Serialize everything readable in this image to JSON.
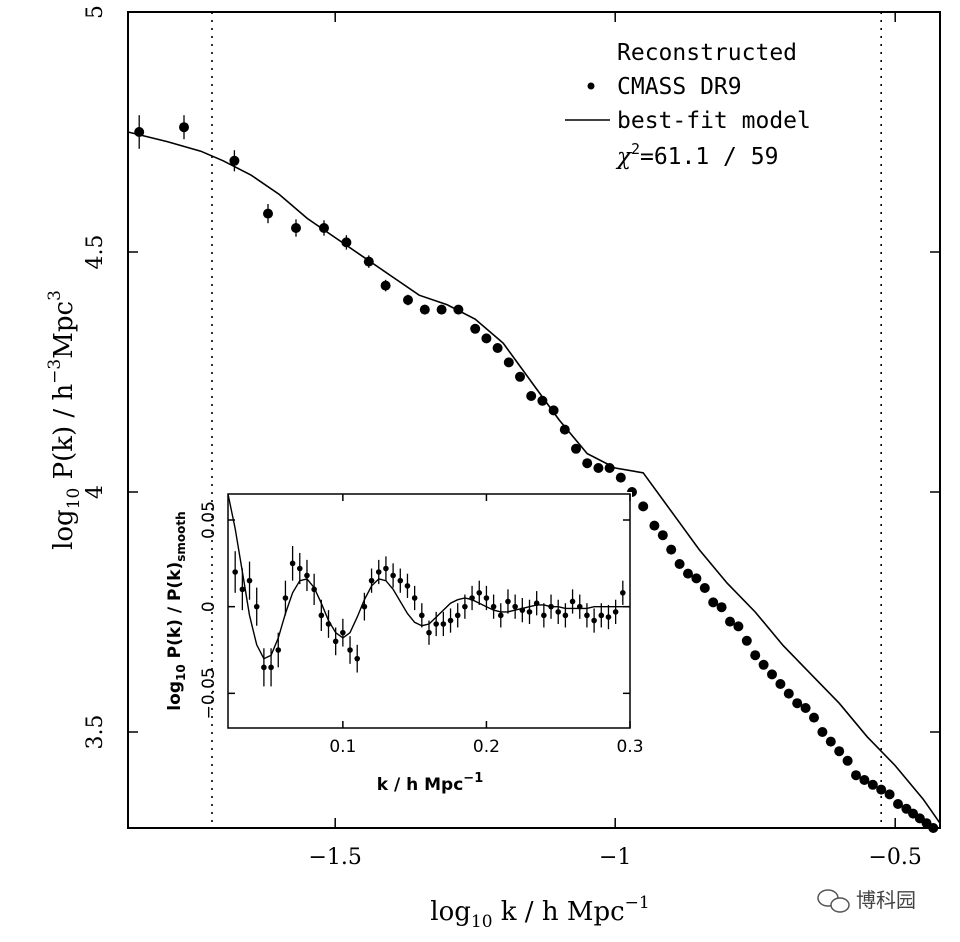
{
  "chart_data": [
    {
      "type": "scatter",
      "title": "",
      "xlabel_main": "log",
      "xlabel_sub": "10",
      "xlabel_rest": " k / h Mpc",
      "xlabel_sup": "−1",
      "ylabel_main": "log",
      "ylabel_sub": "10",
      "ylabel_rest": " P(k) / h",
      "ylabel_sup1": "−3",
      "ylabel_mid": "Mpc",
      "ylabel_sup2": "3",
      "xlim": [
        -1.87,
        -0.42
      ],
      "ylim": [
        3.3,
        5.0
      ],
      "xticks": [
        -1.5,
        -1,
        -0.5
      ],
      "xtick_labels": [
        "−1.5",
        "−1",
        "−0.5"
      ],
      "yticks": [
        3.5,
        4,
        4.5,
        5
      ],
      "ytick_labels": [
        "3.5",
        "4",
        "4.5",
        "5"
      ],
      "vlines_dotted": [
        -1.72,
        -0.525
      ],
      "legend": {
        "title": "Reconstructed",
        "points_label": "CMASS DR9",
        "line_label": "best-fit model",
        "chi_symbol": "χ",
        "chi_sup": "2",
        "chi_value": "=61.1 / 59"
      },
      "series": [
        {
          "name": "CMASS DR9",
          "x": [
            -1.85,
            -1.77,
            -1.68,
            -1.62,
            -1.57,
            -1.52,
            -1.48,
            -1.44,
            -1.41,
            -1.37,
            -1.34,
            -1.31,
            -1.28,
            -1.25,
            -1.23,
            -1.21,
            -1.19,
            -1.17,
            -1.15,
            -1.13,
            -1.11,
            -1.09,
            -1.07,
            -1.05,
            -1.03,
            -1.01,
            -0.99,
            -0.97,
            -0.95,
            -0.93,
            -0.915,
            -0.9,
            -0.885,
            -0.87,
            -0.855,
            -0.84,
            -0.825,
            -0.81,
            -0.795,
            -0.78,
            -0.765,
            -0.75,
            -0.735,
            -0.72,
            -0.705,
            -0.69,
            -0.675,
            -0.66,
            -0.645,
            -0.63,
            -0.615,
            -0.6,
            -0.585,
            -0.57,
            -0.555,
            -0.54,
            -0.525,
            -0.51,
            -0.495,
            -0.48,
            -0.468,
            -0.456,
            -0.444,
            -0.432
          ],
          "y": [
            4.75,
            4.76,
            4.69,
            4.58,
            4.55,
            4.55,
            4.52,
            4.48,
            4.43,
            4.4,
            4.38,
            4.38,
            4.38,
            4.34,
            4.32,
            4.3,
            4.27,
            4.24,
            4.2,
            4.19,
            4.17,
            4.13,
            4.09,
            4.06,
            4.05,
            4.05,
            4.03,
            4.0,
            3.97,
            3.93,
            3.91,
            3.88,
            3.85,
            3.83,
            3.82,
            3.8,
            3.77,
            3.76,
            3.73,
            3.72,
            3.69,
            3.66,
            3.64,
            3.62,
            3.6,
            3.58,
            3.56,
            3.55,
            3.53,
            3.5,
            3.48,
            3.46,
            3.44,
            3.41,
            3.4,
            3.39,
            3.38,
            3.37,
            3.35,
            3.34,
            3.33,
            3.32,
            3.31,
            3.3
          ],
          "yerr": [
            0.035,
            0.025,
            0.022,
            0.02,
            0.018,
            0.016,
            0.015,
            0.013,
            0.012,
            0.011,
            0.01,
            0.009,
            0.008,
            0.008,
            0.007,
            0.007,
            0.006,
            0.006,
            0.006,
            0.005,
            0.005,
            0.005,
            0.005,
            0.005,
            0.005,
            0.005,
            0.005,
            0.004,
            0.004,
            0.004,
            0.004,
            0.004,
            0.004,
            0.004,
            0.004,
            0.004,
            0.004,
            0.004,
            0.004,
            0.004,
            0.004,
            0.004,
            0.004,
            0.004,
            0.004,
            0.004,
            0.004,
            0.004,
            0.004,
            0.004,
            0.004,
            0.004,
            0.004,
            0.004,
            0.004,
            0.004,
            0.004,
            0.004,
            0.004,
            0.004,
            0.004,
            0.004,
            0.004,
            0.004
          ]
        },
        {
          "name": "best-fit model",
          "x": [
            -1.87,
            -1.8,
            -1.74,
            -1.7,
            -1.65,
            -1.6,
            -1.55,
            -1.5,
            -1.45,
            -1.4,
            -1.35,
            -1.3,
            -1.25,
            -1.2,
            -1.15,
            -1.1,
            -1.05,
            -1.0,
            -0.95,
            -0.9,
            -0.85,
            -0.8,
            -0.75,
            -0.7,
            -0.65,
            -0.6,
            -0.55,
            -0.5,
            -0.45,
            -0.42
          ],
          "y": [
            4.75,
            4.73,
            4.71,
            4.69,
            4.66,
            4.62,
            4.57,
            4.53,
            4.49,
            4.45,
            4.41,
            4.39,
            4.36,
            4.31,
            4.23,
            4.15,
            4.08,
            4.05,
            4.04,
            3.96,
            3.88,
            3.81,
            3.75,
            3.68,
            3.62,
            3.56,
            3.49,
            3.43,
            3.36,
            3.31
          ]
        }
      ]
    },
    {
      "type": "scatter",
      "title": "",
      "xlabel_main": "k / h Mpc",
      "xlabel_sup": "−1",
      "ylabel_main": "log",
      "ylabel_sub": "10",
      "ylabel_rest": " P(k) / P(k)",
      "ylabel_sub2": "smooth",
      "xlim": [
        0.02,
        0.3
      ],
      "ylim": [
        -0.07,
        0.065
      ],
      "xticks": [
        0.1,
        0.2,
        0.3
      ],
      "xtick_labels": [
        "0.1",
        "0.2",
        "0.3"
      ],
      "yticks": [
        -0.05,
        0,
        0.05
      ],
      "ytick_labels": [
        "−0.05",
        "0",
        "0.05"
      ],
      "series": [
        {
          "name": "data",
          "x": [
            0.025,
            0.03,
            0.035,
            0.04,
            0.045,
            0.05,
            0.055,
            0.06,
            0.065,
            0.07,
            0.075,
            0.08,
            0.085,
            0.09,
            0.095,
            0.1,
            0.105,
            0.11,
            0.115,
            0.12,
            0.125,
            0.13,
            0.135,
            0.14,
            0.145,
            0.15,
            0.155,
            0.16,
            0.165,
            0.17,
            0.175,
            0.18,
            0.185,
            0.19,
            0.195,
            0.2,
            0.205,
            0.21,
            0.215,
            0.22,
            0.225,
            0.23,
            0.235,
            0.24,
            0.245,
            0.25,
            0.255,
            0.26,
            0.265,
            0.27,
            0.275,
            0.28,
            0.285,
            0.29,
            0.295
          ],
          "y": [
            0.02,
            0.01,
            0.015,
            0.0,
            -0.035,
            -0.035,
            -0.025,
            0.005,
            0.025,
            0.022,
            0.018,
            0.01,
            -0.005,
            -0.01,
            -0.02,
            -0.015,
            -0.025,
            -0.03,
            0.0,
            0.015,
            0.02,
            0.022,
            0.018,
            0.015,
            0.012,
            0.005,
            -0.005,
            -0.015,
            -0.01,
            -0.01,
            -0.008,
            -0.005,
            0.0,
            0.005,
            0.008,
            0.005,
            0.0,
            -0.005,
            0.003,
            0.0,
            -0.002,
            -0.003,
            0.002,
            -0.005,
            0.0,
            -0.003,
            -0.005,
            0.003,
            0.0,
            -0.005,
            -0.008,
            -0.005,
            -0.006,
            -0.003,
            0.008
          ],
          "yerr": [
            0.012,
            0.012,
            0.011,
            0.011,
            0.011,
            0.011,
            0.01,
            0.01,
            0.01,
            0.009,
            0.009,
            0.009,
            0.009,
            0.008,
            0.008,
            0.008,
            0.008,
            0.008,
            0.008,
            0.007,
            0.007,
            0.007,
            0.007,
            0.007,
            0.007,
            0.007,
            0.007,
            0.007,
            0.007,
            0.007,
            0.007,
            0.007,
            0.007,
            0.007,
            0.007,
            0.007,
            0.007,
            0.007,
            0.007,
            0.007,
            0.007,
            0.007,
            0.007,
            0.007,
            0.007,
            0.007,
            0.007,
            0.007,
            0.007,
            0.007,
            0.007,
            0.007,
            0.007,
            0.007,
            0.007
          ]
        },
        {
          "name": "model",
          "x": [
            0.02,
            0.025,
            0.03,
            0.035,
            0.04,
            0.045,
            0.05,
            0.055,
            0.06,
            0.065,
            0.07,
            0.075,
            0.08,
            0.085,
            0.09,
            0.095,
            0.1,
            0.105,
            0.11,
            0.115,
            0.12,
            0.125,
            0.13,
            0.135,
            0.14,
            0.145,
            0.15,
            0.155,
            0.16,
            0.165,
            0.17,
            0.175,
            0.18,
            0.185,
            0.19,
            0.195,
            0.2,
            0.205,
            0.21,
            0.215,
            0.22,
            0.225,
            0.23,
            0.235,
            0.24,
            0.245,
            0.25,
            0.255,
            0.26,
            0.265,
            0.27,
            0.275,
            0.28,
            0.285,
            0.29,
            0.295,
            0.3
          ],
          "y": [
            0.07,
            0.045,
            0.02,
            -0.005,
            -0.022,
            -0.03,
            -0.028,
            -0.018,
            -0.004,
            0.008,
            0.015,
            0.016,
            0.011,
            0.002,
            -0.008,
            -0.015,
            -0.018,
            -0.015,
            -0.006,
            0.004,
            0.012,
            0.016,
            0.015,
            0.01,
            0.003,
            -0.004,
            -0.009,
            -0.011,
            -0.01,
            -0.006,
            -0.002,
            0.002,
            0.004,
            0.005,
            0.004,
            0.002,
            0.0,
            -0.002,
            -0.003,
            -0.003,
            -0.002,
            -0.001,
            0.0,
            0.001,
            0.001,
            0.0,
            0.0,
            -0.001,
            -0.001,
            -0.001,
            -0.001,
            0.0,
            0.0,
            0.0,
            0.0,
            0.0,
            0.0
          ]
        }
      ]
    }
  ],
  "watermark": {
    "icon": "wechat-icon",
    "text": "博科园"
  }
}
